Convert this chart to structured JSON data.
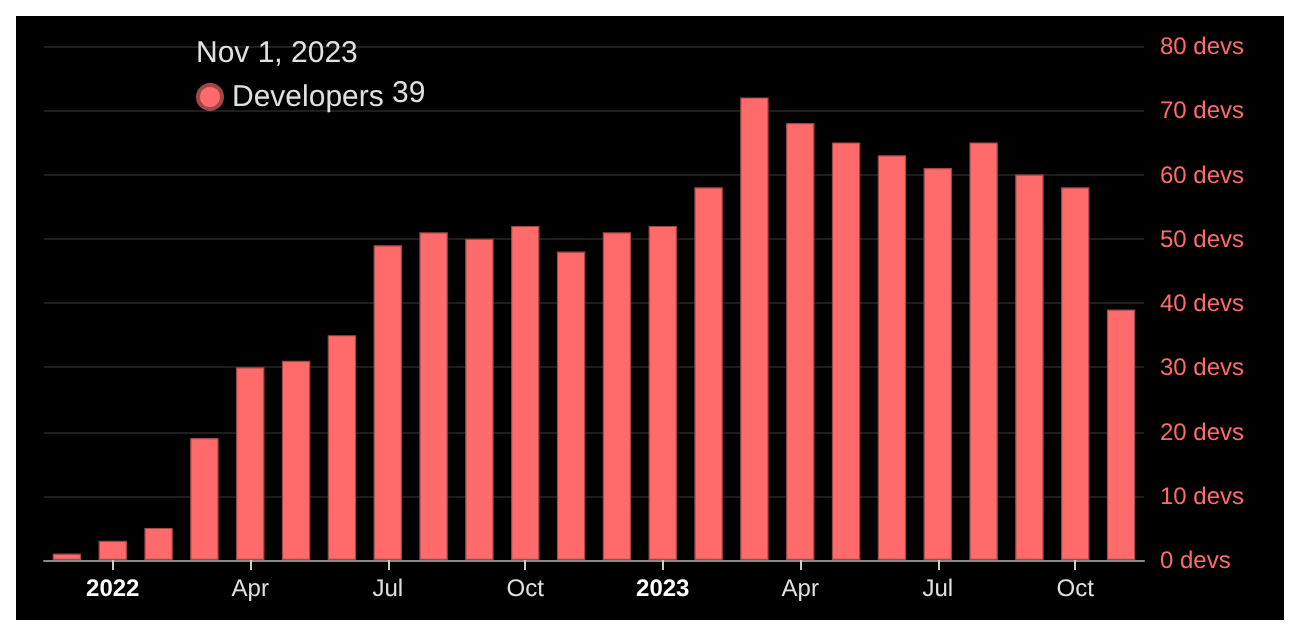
{
  "chart_data": {
    "type": "bar",
    "title": "Nov 1, 2023",
    "categories": [
      null,
      "2022",
      null,
      null,
      "Apr",
      null,
      null,
      "Jul",
      null,
      null,
      "Oct",
      null,
      null,
      "2023",
      null,
      null,
      "Apr",
      null,
      null,
      "Jul",
      null,
      null,
      "Oct",
      null
    ],
    "series": [
      {
        "name": "Developers",
        "color": "#ff6b6b",
        "values": [
          1,
          3,
          5,
          19,
          30,
          31,
          35,
          49,
          51,
          50,
          52,
          48,
          51,
          52,
          58,
          72,
          68,
          65,
          63,
          61,
          65,
          60,
          58,
          39
        ]
      }
    ],
    "annotations": [
      "39"
    ],
    "ylim": [
      0,
      80
    ],
    "yticks": [
      {
        "value": 0,
        "label": "0 devs"
      },
      {
        "value": 10,
        "label": "10 devs"
      },
      {
        "value": 20,
        "label": "20 devs"
      },
      {
        "value": 30,
        "label": "30 devs"
      },
      {
        "value": 40,
        "label": "40 devs"
      },
      {
        "value": 50,
        "label": "50 devs"
      },
      {
        "value": 60,
        "label": "60 devs"
      },
      {
        "value": 70,
        "label": "70 devs"
      },
      {
        "value": 80,
        "label": "80 devs"
      }
    ],
    "grid": "y",
    "legend": "top left"
  }
}
